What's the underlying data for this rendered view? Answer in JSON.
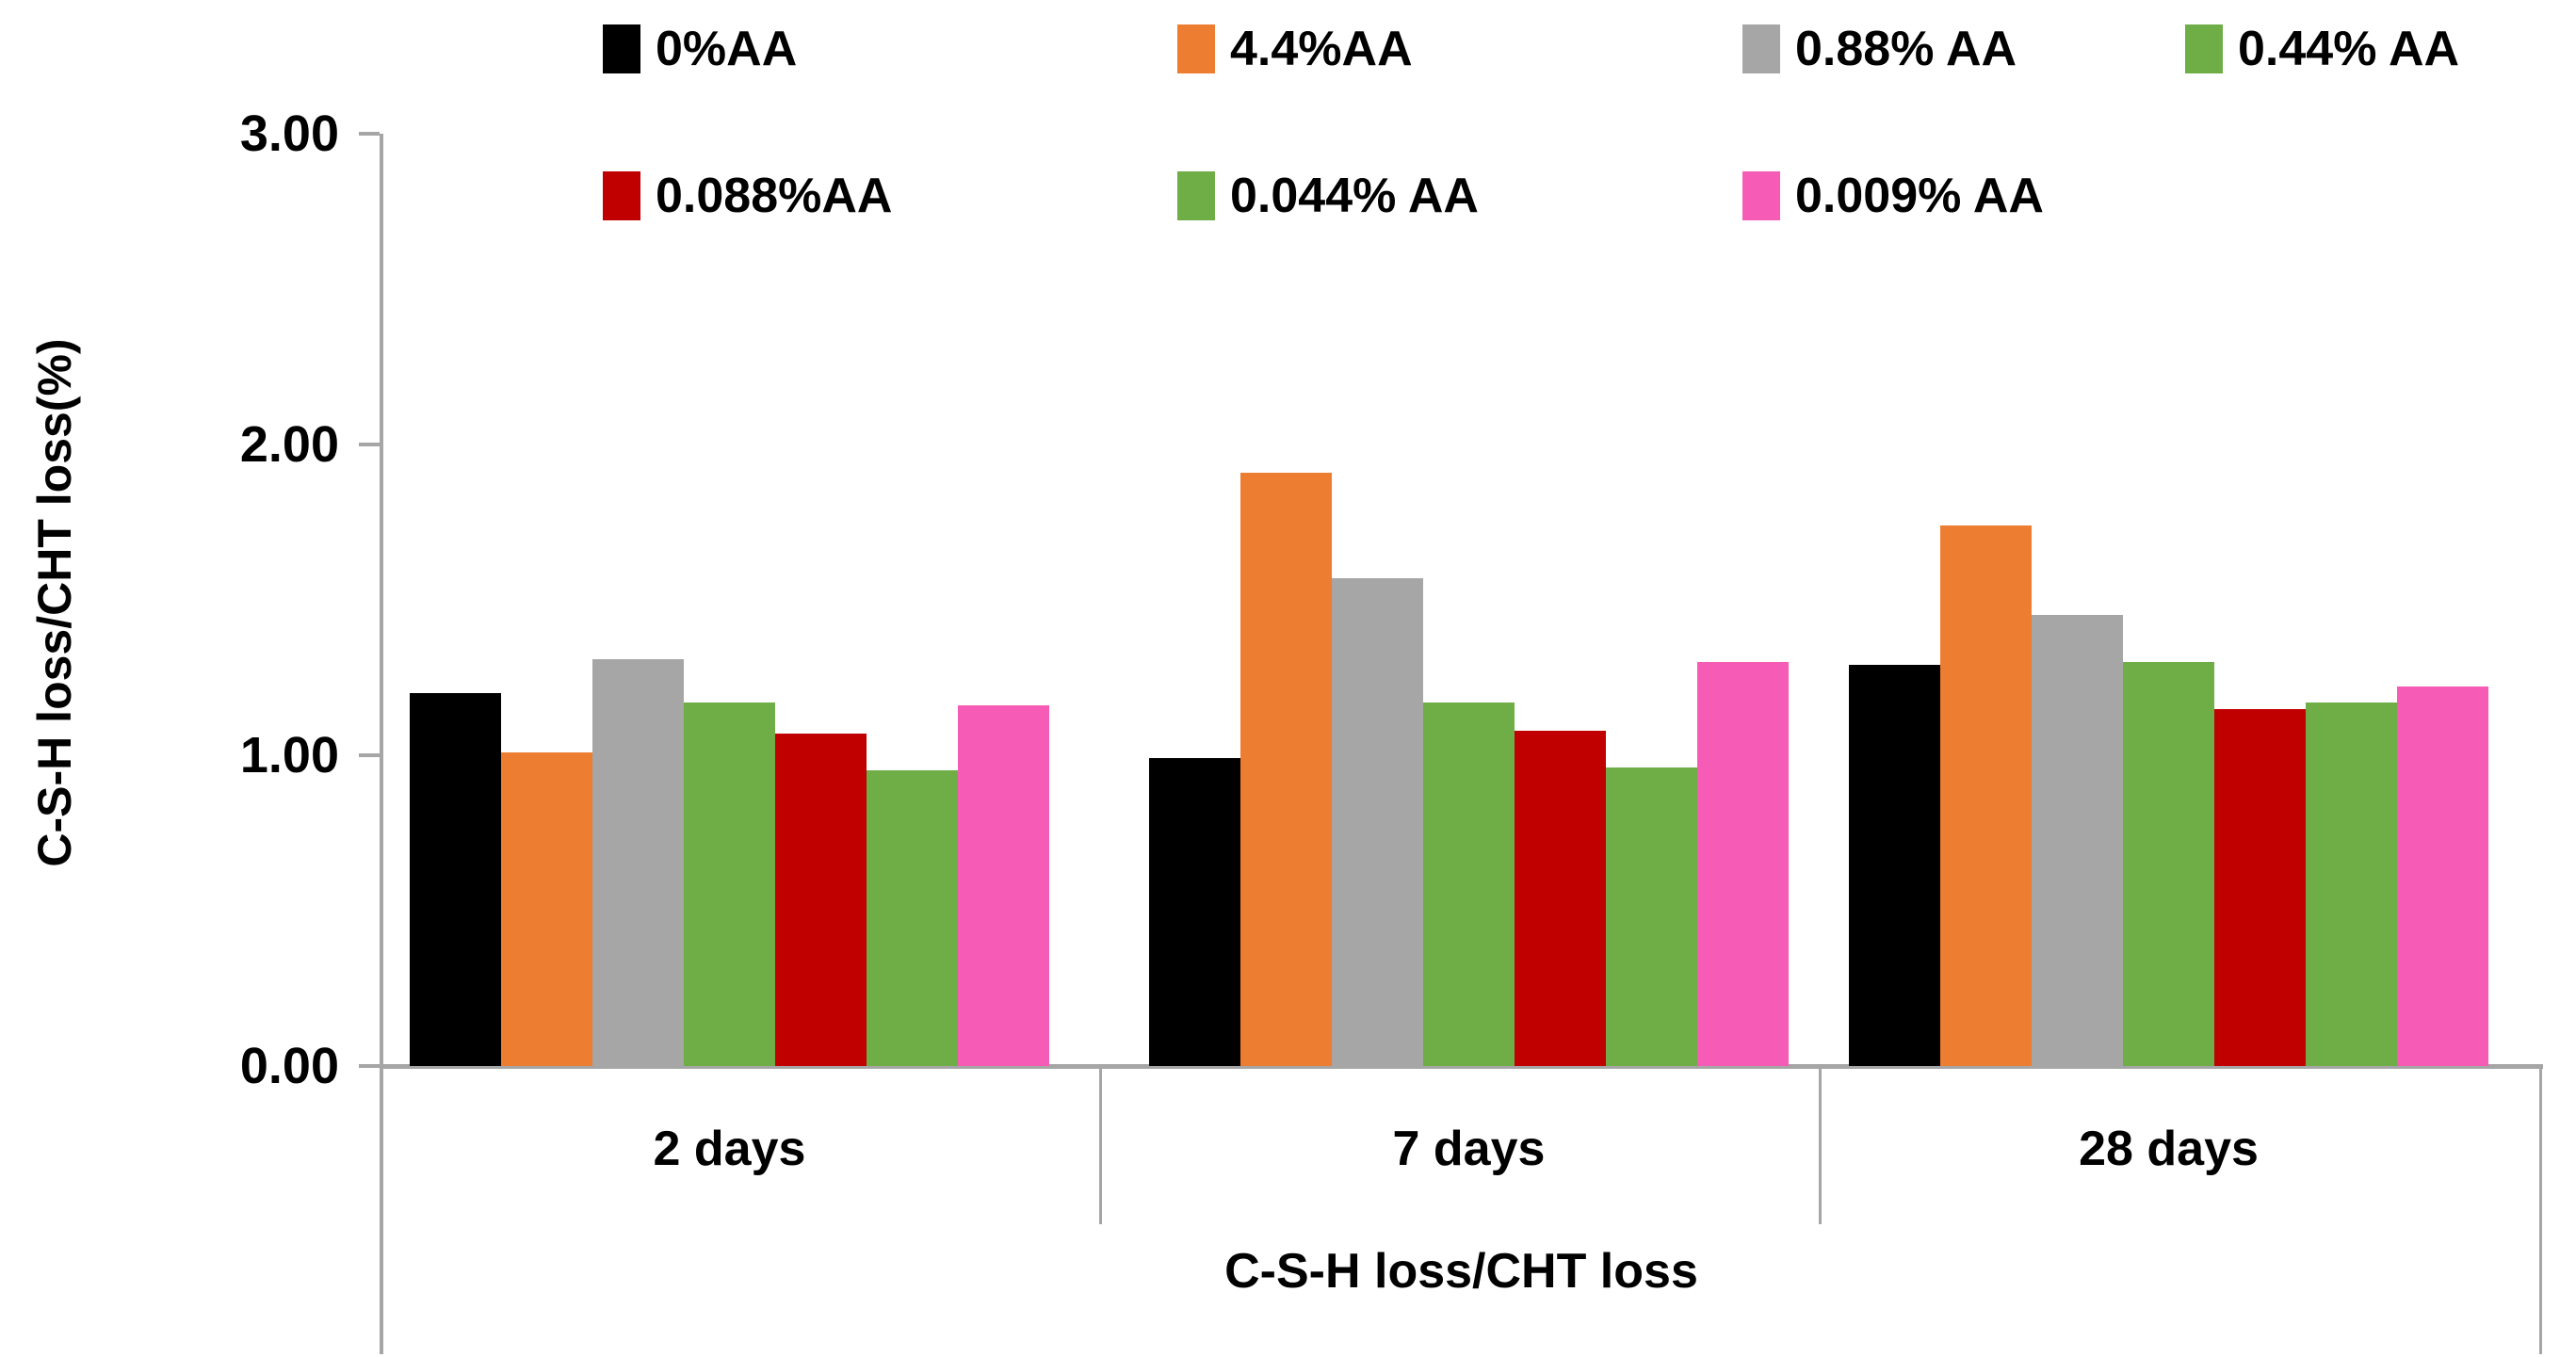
{
  "chart_data": {
    "type": "bar",
    "title": "",
    "categories": [
      "2 days",
      "7 days",
      "28 days"
    ],
    "series": [
      {
        "name": "0%AA",
        "color": "#000000",
        "values": [
          1.2,
          0.99,
          1.29
        ]
      },
      {
        "name": "4.4%AA",
        "color": "#ED7D31",
        "values": [
          1.01,
          1.91,
          1.74
        ]
      },
      {
        "name": "0.88% AA",
        "color": "#A6A6A6",
        "values": [
          1.31,
          1.57,
          1.45
        ]
      },
      {
        "name": "0.44% AA",
        "color": "#6FAD47",
        "values": [
          1.17,
          1.17,
          1.3
        ]
      },
      {
        "name": "0.088%AA",
        "color": "#C00000",
        "values": [
          1.07,
          1.08,
          1.15
        ]
      },
      {
        "name": "0.044% AA",
        "color": "#6FAD47",
        "values": [
          0.95,
          0.96,
          1.17
        ]
      },
      {
        "name": "0.009% AA",
        "color": "#F65CB6",
        "values": [
          1.16,
          1.3,
          1.22
        ]
      }
    ],
    "xlabel": "C-S-H loss/CHT loss",
    "ylabel": "C-S-H loss/CHT loss(%)",
    "ylim": [
      0,
      3
    ],
    "ytick_labels": [
      "0.00",
      "1.00",
      "2.00",
      "3.00"
    ],
    "legend_rows": [
      [
        0,
        1,
        2,
        3
      ],
      [
        4,
        5,
        6
      ]
    ],
    "legend_position": "top",
    "grid": false,
    "axis_color": "#A6A6A6",
    "text_color": "#000000"
  }
}
